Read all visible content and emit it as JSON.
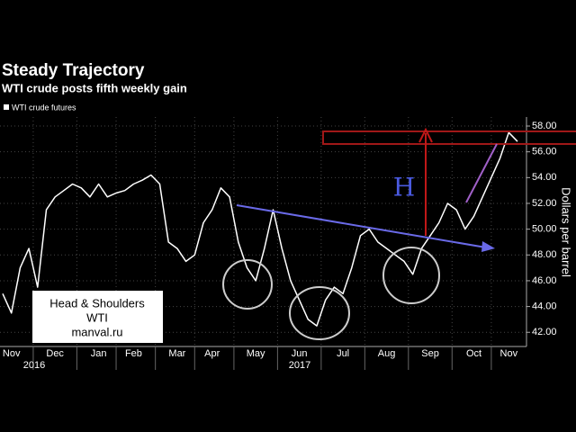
{
  "chart_data": {
    "type": "line",
    "title": "Steady Trajectory",
    "subtitle": "WTI crude posts fifth weekly gain",
    "y_label": "Dollars per barrel",
    "categories": [
      null,
      "Nov",
      null,
      null,
      null,
      null,
      "Dec",
      null,
      null,
      null,
      null,
      "Jan",
      null,
      null,
      null,
      "Feb",
      null,
      null,
      null,
      null,
      "Mar",
      null,
      null,
      null,
      "Apr",
      null,
      null,
      null,
      null,
      "May",
      null,
      null,
      null,
      null,
      "Jun",
      null,
      null,
      null,
      null,
      "Jul",
      null,
      null,
      null,
      null,
      "Aug",
      null,
      null,
      null,
      null,
      "Sep",
      null,
      null,
      null,
      null,
      "Oct",
      null,
      null,
      null,
      "Nov",
      null
    ],
    "year_labels": [
      "2016",
      "2017"
    ],
    "series": [
      {
        "name": "WTI crude futures",
        "color": "#ffffff",
        "values": [
          45,
          43.5,
          47,
          48.5,
          45.5,
          51.5,
          52.5,
          53,
          53.5,
          53.2,
          52.5,
          53.5,
          52.5,
          52.8,
          53,
          53.5,
          53.8,
          54.2,
          53.5,
          49,
          48.5,
          47.5,
          48,
          50.5,
          51.5,
          53.2,
          52.5,
          49,
          47,
          46,
          48.5,
          51.5,
          48.5,
          46,
          44.5,
          43,
          42.5,
          44.5,
          45.5,
          45,
          47,
          49.5,
          50,
          49,
          48.5,
          48,
          47.5,
          46.5,
          48.5,
          49.5,
          50.5,
          52,
          51.5,
          50,
          51,
          52.5,
          54,
          55.5,
          57.5,
          56.8
        ]
      }
    ],
    "ylim": [
      40.9,
      58.7
    ],
    "yticks": [
      {
        "value": 42,
        "label": "42.00"
      },
      {
        "value": 44,
        "label": "44.00"
      },
      {
        "value": 46,
        "label": "46.00"
      },
      {
        "value": 48,
        "label": "48.00"
      },
      {
        "value": 50,
        "label": "50.00"
      },
      {
        "value": 52,
        "label": "52.00"
      },
      {
        "value": 54,
        "label": "54.00"
      },
      {
        "value": 56,
        "label": "56.00"
      },
      {
        "value": 58,
        "label": "58.00"
      }
    ],
    "grid": true,
    "annotation": {
      "lines": [
        "Head & Shoulders",
        "WTI",
        "manval.ru"
      ],
      "mark": "H"
    }
  }
}
